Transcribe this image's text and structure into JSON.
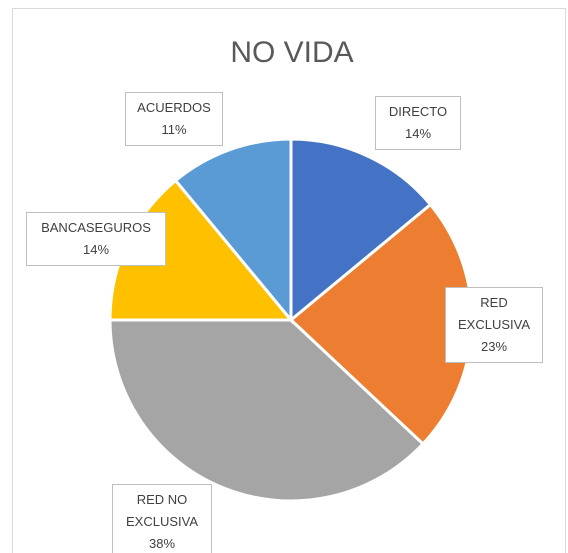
{
  "chart_data": {
    "type": "pie",
    "title": "NO VIDA",
    "categories": [
      "DIRECTO",
      "RED EXCLUSIVA",
      "RED NO EXCLUSIVA",
      "BANCASEGUROS",
      "ACUERDOS"
    ],
    "values": [
      14,
      23,
      38,
      14,
      11
    ],
    "value_labels": [
      "14%",
      "23%",
      "38%",
      "14%",
      "11%"
    ],
    "colors": [
      "#4472c4",
      "#ed7d31",
      "#a5a5a5",
      "#ffc000",
      "#5b9bd5"
    ]
  }
}
